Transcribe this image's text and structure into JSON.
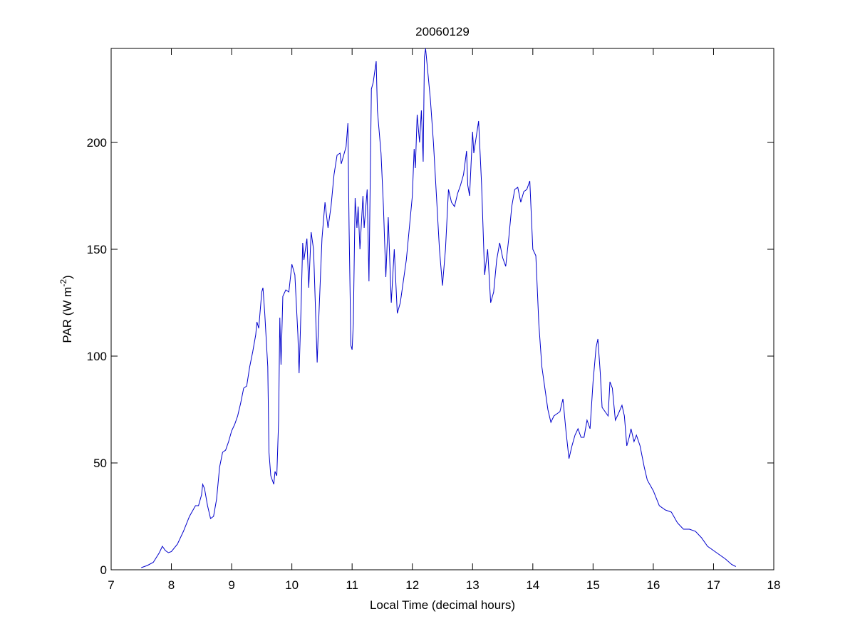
{
  "chart_data": {
    "type": "line",
    "title": "20060129",
    "xlabel": "Local Time (decimal hours)",
    "ylabel": {
      "text": "PAR (W m",
      "superscript": "-2",
      "suffix": ")"
    },
    "color": "#0000cc",
    "xlim": [
      7,
      18
    ],
    "xticks": [
      7,
      8,
      9,
      10,
      11,
      12,
      13,
      14,
      15,
      16,
      17,
      18
    ],
    "ylim": [
      0,
      244
    ],
    "yticks": [
      0,
      50,
      100,
      150,
      200
    ],
    "x": [
      7.5,
      7.6,
      7.7,
      7.8,
      7.85,
      7.9,
      7.95,
      8.0,
      8.1,
      8.2,
      8.3,
      8.4,
      8.45,
      8.5,
      8.52,
      8.55,
      8.6,
      8.65,
      8.7,
      8.75,
      8.8,
      8.85,
      8.9,
      8.95,
      9.0,
      9.05,
      9.1,
      9.15,
      9.2,
      9.25,
      9.3,
      9.35,
      9.4,
      9.42,
      9.45,
      9.5,
      9.52,
      9.55,
      9.6,
      9.62,
      9.65,
      9.7,
      9.72,
      9.75,
      9.78,
      9.8,
      9.82,
      9.85,
      9.9,
      9.95,
      10.0,
      10.05,
      10.1,
      10.12,
      10.15,
      10.18,
      10.2,
      10.25,
      10.28,
      10.32,
      10.36,
      10.4,
      10.42,
      10.45,
      10.5,
      10.55,
      10.6,
      10.65,
      10.7,
      10.75,
      10.8,
      10.82,
      10.9,
      10.93,
      10.95,
      10.98,
      11.0,
      11.02,
      11.05,
      11.08,
      11.1,
      11.13,
      11.18,
      11.2,
      11.25,
      11.28,
      11.32,
      11.35,
      11.4,
      11.42,
      11.48,
      11.52,
      11.56,
      11.6,
      11.65,
      11.7,
      11.75,
      11.8,
      11.9,
      12.0,
      12.03,
      12.05,
      12.08,
      12.12,
      12.15,
      12.18,
      12.2,
      12.22,
      12.25,
      12.3,
      12.35,
      12.4,
      12.45,
      12.5,
      12.55,
      12.6,
      12.65,
      12.7,
      12.75,
      12.8,
      12.85,
      12.9,
      12.92,
      12.95,
      13.0,
      13.02,
      13.1,
      13.15,
      13.2,
      13.25,
      13.3,
      13.35,
      13.4,
      13.45,
      13.5,
      13.55,
      13.6,
      13.65,
      13.7,
      13.75,
      13.8,
      13.85,
      13.9,
      13.95,
      14.0,
      14.05,
      14.1,
      14.15,
      14.2,
      14.25,
      14.3,
      14.35,
      14.4,
      14.45,
      14.5,
      14.55,
      14.6,
      14.65,
      14.7,
      14.75,
      14.8,
      14.85,
      14.9,
      14.95,
      15.0,
      15.05,
      15.08,
      15.12,
      15.15,
      15.2,
      15.25,
      15.28,
      15.32,
      15.37,
      15.42,
      15.48,
      15.52,
      15.56,
      15.6,
      15.63,
      15.68,
      15.72,
      15.78,
      15.85,
      15.9,
      16.0,
      16.1,
      16.2,
      16.3,
      16.4,
      16.5,
      16.6,
      16.7,
      16.8,
      16.9,
      17.0,
      17.1,
      17.2,
      17.3,
      17.37
    ],
    "values": [
      1,
      2,
      3.5,
      8,
      11,
      9,
      8,
      8.5,
      12,
      18,
      25,
      30,
      30,
      35,
      40,
      38,
      30,
      24,
      25,
      33,
      48,
      55,
      56,
      60,
      65,
      68,
      72,
      78,
      85,
      86,
      95,
      102,
      110,
      116,
      113,
      130,
      132,
      120,
      95,
      55,
      44,
      40,
      46,
      44,
      70,
      118,
      96,
      128,
      131,
      130,
      143,
      138,
      110,
      92,
      120,
      153,
      145,
      155,
      132,
      158,
      150,
      115,
      97,
      120,
      155,
      172,
      160,
      170,
      185,
      194,
      195,
      190,
      198,
      209,
      160,
      105,
      103,
      115,
      174,
      160,
      170,
      150,
      175,
      160,
      178,
      135,
      225,
      228,
      238,
      215,
      195,
      170,
      137,
      165,
      125,
      150,
      120,
      125,
      145,
      175,
      197,
      188,
      213,
      200,
      215,
      191,
      240,
      244,
      235,
      220,
      200,
      175,
      150,
      133,
      150,
      178,
      172,
      170,
      176,
      180,
      185,
      196,
      180,
      175,
      205,
      195,
      210,
      180,
      138,
      150,
      125,
      130,
      145,
      153,
      146,
      142,
      155,
      170,
      178,
      179,
      172,
      177,
      178,
      182,
      150,
      147,
      115,
      95,
      85,
      75,
      69,
      72,
      73,
      74,
      80,
      65,
      52,
      58,
      63,
      66,
      62,
      62,
      70,
      66,
      88,
      104,
      108,
      92,
      76,
      74,
      72,
      88,
      85,
      70,
      73,
      77,
      72,
      58,
      62,
      66,
      60,
      63,
      58,
      48,
      42,
      37,
      30,
      28,
      27,
      22,
      19,
      19,
      18,
      15,
      11,
      9,
      7,
      5,
      2.5,
      1.5
    ]
  }
}
